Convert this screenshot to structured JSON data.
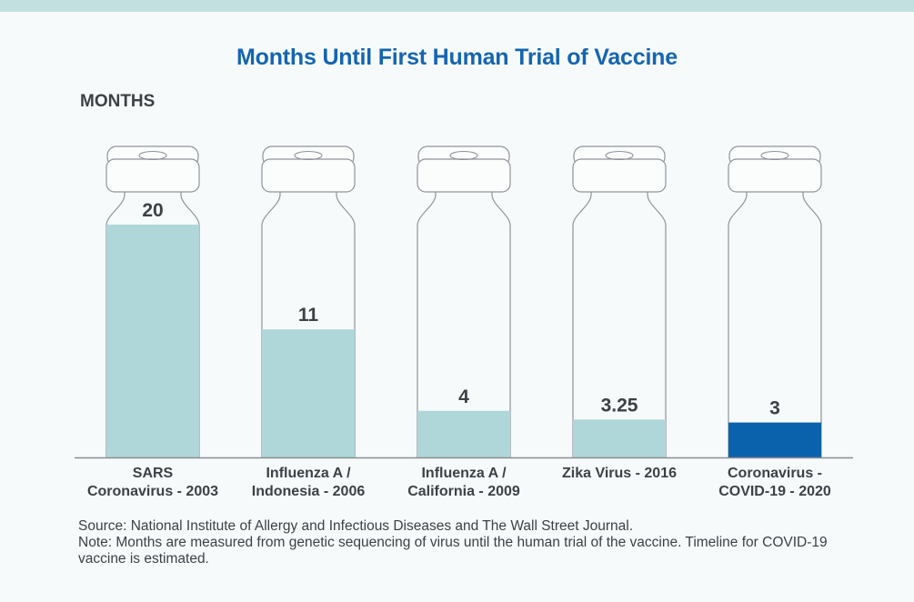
{
  "chart_data": {
    "type": "bar",
    "title": "Months Until First Human Trial of Vaccine",
    "ylabel": "MONTHS",
    "xlabel": "",
    "categories": [
      [
        "SARS",
        "Coronavirus - 2003"
      ],
      [
        "Influenza A /",
        "Indonesia - 2006"
      ],
      [
        "Influenza A /",
        "California - 2009"
      ],
      [
        "Zika Virus - 2016"
      ],
      [
        "Coronavirus -",
        "COVID-19 - 2020"
      ]
    ],
    "values": [
      20,
      11,
      4,
      3.25,
      3
    ],
    "value_labels": [
      "20",
      "11",
      "4",
      "3.25",
      "3"
    ],
    "ylim": [
      0,
      20
    ],
    "grid": false,
    "colors": [
      "#afd6d8",
      "#afd6d8",
      "#afd6d8",
      "#afd6d8",
      "#0a62ad"
    ],
    "axis_color": "#8a8e92",
    "vial_outline_color": "#8f9499"
  },
  "notes": {
    "source": "Source: National Institute of Allergy and Infectious Diseases and The Wall Street Journal.",
    "note": "Note: Months are measured from genetic sequencing of virus until the human trial of the vaccine. Timeline for COVID-19 vaccine is estimated."
  }
}
